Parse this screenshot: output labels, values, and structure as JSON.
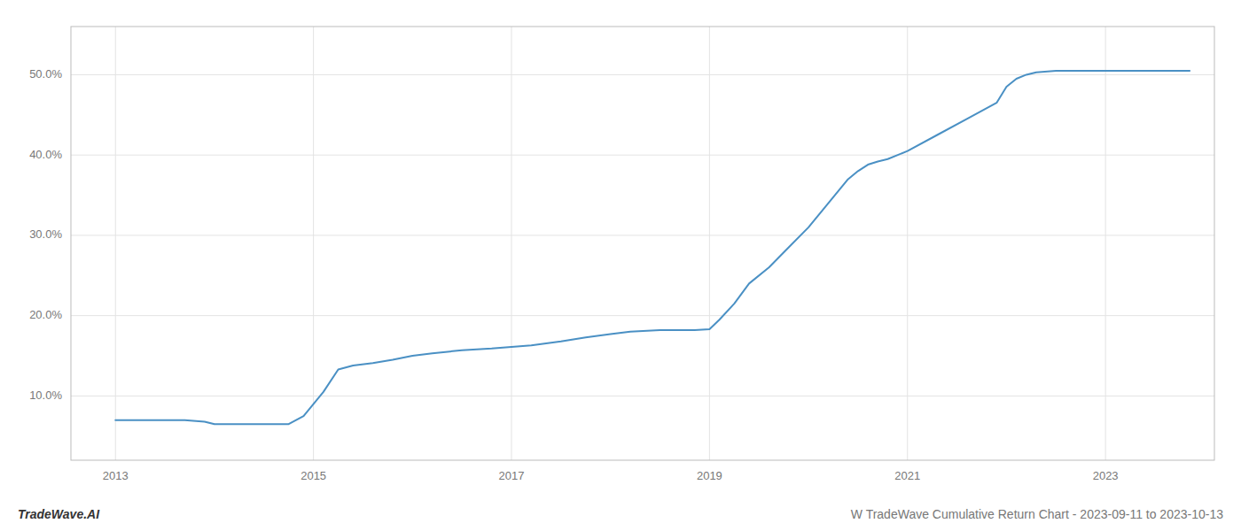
{
  "chart_data": {
    "type": "line",
    "color": "#4a90c4",
    "grid": true,
    "annotations": [
      "TradeWave.AI",
      "W TradeWave Cumulative Return Chart - 2023-09-11 to 2023-10-13"
    ],
    "x": [
      2013.0,
      2013.15,
      2013.3,
      2013.5,
      2013.7,
      2013.9,
      2014.0,
      2014.2,
      2014.4,
      2014.6,
      2014.75,
      2014.9,
      2015.1,
      2015.25,
      2015.4,
      2015.6,
      2015.8,
      2016.0,
      2016.2,
      2016.5,
      2016.8,
      2017.0,
      2017.2,
      2017.5,
      2017.75,
      2018.0,
      2018.2,
      2018.5,
      2018.7,
      2018.85,
      2019.0,
      2019.1,
      2019.25,
      2019.4,
      2019.6,
      2019.8,
      2020.0,
      2020.2,
      2020.4,
      2020.5,
      2020.6,
      2020.7,
      2020.8,
      2021.0,
      2021.3,
      2021.6,
      2021.9,
      2022.0,
      2022.1,
      2022.2,
      2022.3,
      2022.5,
      2022.6,
      2022.7,
      2022.8,
      2022.9,
      2023.0,
      2023.3,
      2023.6,
      2023.85
    ],
    "values": [
      7.0,
      7.0,
      7.0,
      7.0,
      7.0,
      6.8,
      6.5,
      6.5,
      6.5,
      6.5,
      6.5,
      7.5,
      10.5,
      13.3,
      13.8,
      14.1,
      14.5,
      15.0,
      15.3,
      15.7,
      15.9,
      16.1,
      16.3,
      16.8,
      17.3,
      17.7,
      18.0,
      18.2,
      18.2,
      18.2,
      18.3,
      19.5,
      21.5,
      24.0,
      26.0,
      28.5,
      31.0,
      34.0,
      37.0,
      38.0,
      38.8,
      39.2,
      39.5,
      40.5,
      42.5,
      44.5,
      46.5,
      48.5,
      49.5,
      50.0,
      50.3,
      50.5,
      50.5,
      50.5,
      50.5,
      50.5,
      50.5,
      50.5,
      50.5,
      50.5
    ],
    "xlim": [
      2012.55,
      2024.1
    ],
    "ylim": [
      2,
      56
    ],
    "xticks": [
      2013,
      2015,
      2017,
      2019,
      2021,
      2023
    ],
    "yticks": [
      {
        "value": 10.0,
        "label": "10.0%"
      },
      {
        "value": 20.0,
        "label": "20.0%"
      },
      {
        "value": 30.0,
        "label": "30.0%"
      },
      {
        "value": 40.0,
        "label": "40.0%"
      },
      {
        "value": 50.0,
        "label": "50.0%"
      }
    ]
  }
}
